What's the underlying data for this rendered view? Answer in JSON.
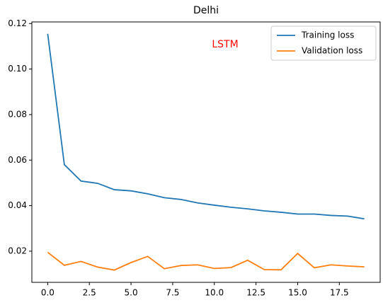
{
  "chart_data": {
    "type": "line",
    "title": "Delhi",
    "annotation": "LSTM",
    "annotation_color": "#ff0000",
    "x": [
      0,
      1,
      2,
      3,
      4,
      5,
      6,
      7,
      8,
      9,
      10,
      11,
      12,
      13,
      14,
      15,
      16,
      17,
      18,
      19
    ],
    "series": [
      {
        "name": "Training loss",
        "color": "#1f77b4",
        "values": [
          0.1155,
          0.058,
          0.0508,
          0.0498,
          0.047,
          0.0465,
          0.0452,
          0.0435,
          0.0427,
          0.0412,
          0.0402,
          0.0393,
          0.0386,
          0.0377,
          0.0371,
          0.0363,
          0.0363,
          0.0357,
          0.0354,
          0.0342
        ]
      },
      {
        "name": "Validation loss",
        "color": "#ff7f0e",
        "values": [
          0.0195,
          0.0138,
          0.0155,
          0.013,
          0.0117,
          0.015,
          0.0177,
          0.0123,
          0.0137,
          0.014,
          0.0124,
          0.0128,
          0.016,
          0.0119,
          0.0118,
          0.019,
          0.0127,
          0.014,
          0.0135,
          0.0131
        ]
      }
    ],
    "xlim": [
      -0.95,
      19.95
    ],
    "xticks": [
      {
        "value": 0,
        "label": "0.0"
      },
      2.5,
      {
        "value": 5,
        "label": "5.0"
      },
      7.5,
      {
        "value": 10,
        "label": "10.0"
      },
      12.5,
      {
        "value": 15,
        "label": "15.0"
      },
      17.5
    ],
    "ylim": [
      0.0063,
      0.1207
    ],
    "yticks": [
      0.02,
      0.04,
      0.06,
      0.08,
      {
        "value": 0.1,
        "label": "0.10"
      },
      0.12
    ],
    "legend": "upper right",
    "grid": false
  }
}
